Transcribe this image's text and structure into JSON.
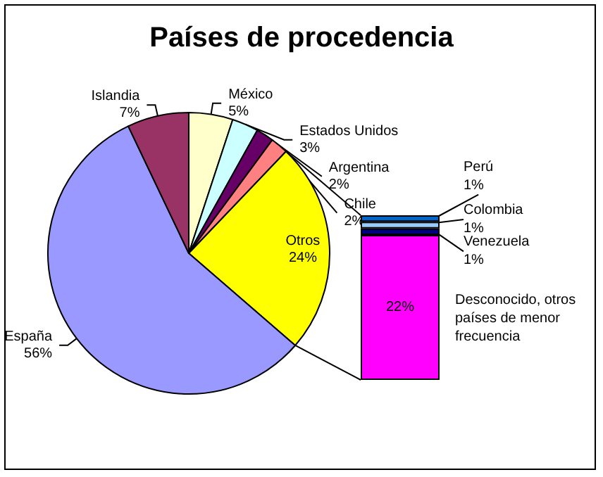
{
  "chart_data": [
    {
      "type": "pie",
      "title": "Países de procedencia",
      "categories": [
        "México",
        "Estados Unidos",
        "Argentina",
        "Chile",
        "Otros",
        "España",
        "Islandia"
      ],
      "values": [
        5,
        3,
        2,
        2,
        24,
        56,
        7
      ],
      "value_labels": [
        "5%",
        "3%",
        "2%",
        "2%",
        "24%",
        "56%",
        "7%"
      ],
      "colors": [
        "#ffffcc",
        "#ccffff",
        "#660066",
        "#ff8080",
        "#ffff00",
        "#9999ff",
        "#993366"
      ]
    },
    {
      "type": "bar",
      "stacked": true,
      "categories": [
        null
      ],
      "tick_labels": false,
      "series": [
        {
          "name": "Desconocido, otros países de menor frecuencia",
          "color": "#ff00ff",
          "values": [
            22
          ],
          "value_labels": [
            "22%"
          ]
        },
        {
          "name": "Venezuela",
          "color": "#000080",
          "values": [
            1
          ],
          "value_labels": [
            "1%"
          ]
        },
        {
          "name": "Colombia",
          "color": "#99ccff",
          "values": [
            1
          ],
          "value_labels": [
            "1%"
          ]
        },
        {
          "name": "Perú",
          "color": "#0066cc",
          "values": [
            1
          ],
          "value_labels": [
            "1%"
          ]
        }
      ]
    }
  ]
}
